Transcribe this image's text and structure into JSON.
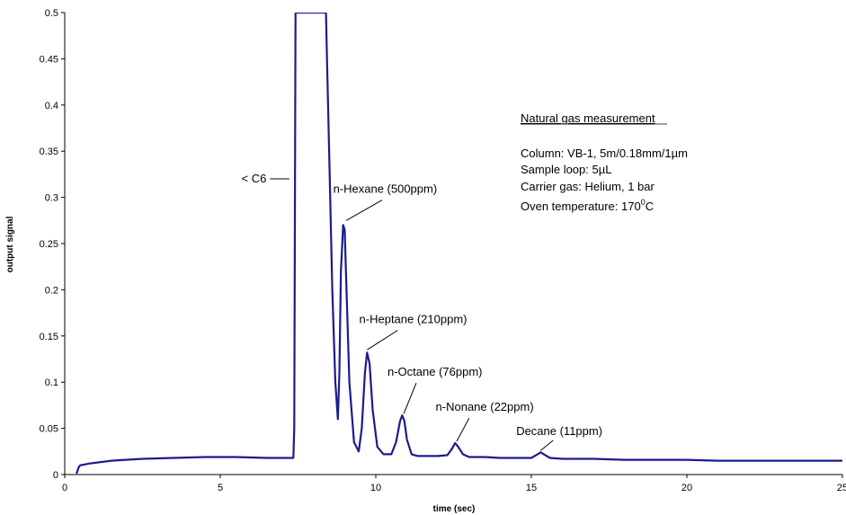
{
  "chart_data": {
    "type": "line",
    "title": "",
    "xlabel": "time (sec)",
    "ylabel": "output signal",
    "xlim": [
      0,
      25
    ],
    "ylim": [
      0,
      0.5
    ],
    "xticks": [
      "0",
      "5",
      "10",
      "15",
      "20",
      "25"
    ],
    "yticks": [
      "0",
      "0.05",
      "0.1",
      "0.15",
      "0.2",
      "0.25",
      "0.3",
      "0.35",
      "0.4",
      "0.45",
      "0.5"
    ],
    "grid": false,
    "line_color": "#1c1c8c",
    "series": [
      {
        "x": [
          0.38,
          0.45,
          0.5,
          0.8,
          1.5,
          2.5,
          3.5,
          4.5,
          5.5,
          6.5,
          7.2,
          7.35,
          7.38,
          7.42,
          7.46,
          8.4,
          8.43,
          8.5,
          8.6,
          8.7,
          8.78,
          8.83,
          8.88,
          8.95,
          9.0,
          9.05,
          9.15,
          9.3,
          9.45,
          9.55,
          9.65,
          9.72,
          9.8,
          9.9,
          10.05,
          10.25,
          10.5,
          10.65,
          10.78,
          10.85,
          10.92,
          11.0,
          11.15,
          11.35,
          11.6,
          12.0,
          12.3,
          12.45,
          12.55,
          12.65,
          12.8,
          13.0,
          13.5,
          14.0,
          14.5,
          15.0,
          15.2,
          15.3,
          15.4,
          15.6,
          16.0,
          17.0,
          18.0,
          19.0,
          20.0,
          21.0,
          22.0,
          23.0,
          24.0,
          25.0
        ],
        "y": [
          0.001,
          0.008,
          0.01,
          0.012,
          0.015,
          0.017,
          0.018,
          0.019,
          0.019,
          0.018,
          0.018,
          0.018,
          0.05,
          0.5,
          0.5,
          0.5,
          0.45,
          0.35,
          0.2,
          0.1,
          0.06,
          0.11,
          0.22,
          0.27,
          0.265,
          0.21,
          0.1,
          0.035,
          0.025,
          0.05,
          0.11,
          0.132,
          0.12,
          0.07,
          0.03,
          0.022,
          0.022,
          0.035,
          0.058,
          0.064,
          0.058,
          0.038,
          0.022,
          0.02,
          0.02,
          0.02,
          0.021,
          0.028,
          0.034,
          0.03,
          0.022,
          0.019,
          0.019,
          0.018,
          0.018,
          0.018,
          0.022,
          0.024,
          0.022,
          0.018,
          0.017,
          0.017,
          0.016,
          0.016,
          0.016,
          0.015,
          0.015,
          0.015,
          0.015,
          0.015
        ]
      }
    ],
    "annotations": [
      {
        "text": "< C6",
        "x": 6.6,
        "y": 0.32
      },
      {
        "text": "n-Hexane (500ppm)",
        "x": 10.3,
        "y": 0.305
      },
      {
        "text": "n-Heptane (210ppm)",
        "x": 11.2,
        "y": 0.164
      },
      {
        "text": "n-Octane (76ppm)",
        "x": 11.9,
        "y": 0.107
      },
      {
        "text": "n-Nonane (22ppm)",
        "x": 13.5,
        "y": 0.069
      },
      {
        "text": "Decane (11ppm)",
        "x": 15.9,
        "y": 0.043
      }
    ]
  },
  "info_box": {
    "heading": "Natural gas measurement",
    "column": "Column: VB-1, 5m/0.18mm/1µm",
    "sample_loop": "Sample loop: 5µL",
    "carrier_gas": "Carrier gas: Helium, 1 bar",
    "oven_prefix": "Oven temperature: 170",
    "oven_sup": "0",
    "oven_suffix": "C"
  }
}
